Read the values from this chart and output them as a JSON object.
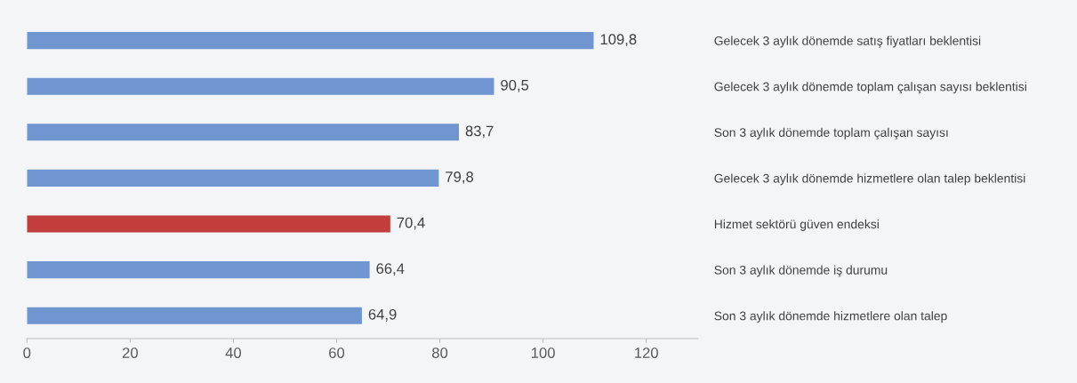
{
  "chart_data": {
    "type": "bar",
    "orientation": "horizontal",
    "categories": [
      "Gelecek 3 aylık dönemde satış fiyatları beklentisi",
      "Gelecek 3 aylık dönemde toplam çalışan sayısı beklentisi",
      "Son 3 aylık dönemde toplam çalışan sayısı",
      "Gelecek 3 aylık dönemde hizmetlere olan talep beklentisi",
      "Hizmet sektörü güven endeksi",
      "Son 3 aylık dönemde iş durumu",
      "Son 3 aylık dönemde hizmetlere olan talep"
    ],
    "values": [
      109.8,
      90.5,
      83.7,
      79.8,
      70.4,
      66.4,
      64.9
    ],
    "value_labels": [
      "109,8",
      "90,5",
      "83,7",
      "79,8",
      "70,4",
      "66,4",
      "64,9"
    ],
    "colors": [
      "#7096d1",
      "#7096d1",
      "#7096d1",
      "#7096d1",
      "#c43d3d",
      "#7096d1",
      "#7096d1"
    ],
    "xlim": [
      0,
      130
    ],
    "xticks": [
      0,
      20,
      40,
      60,
      80,
      100,
      120
    ],
    "grid": false,
    "legend": false
  }
}
